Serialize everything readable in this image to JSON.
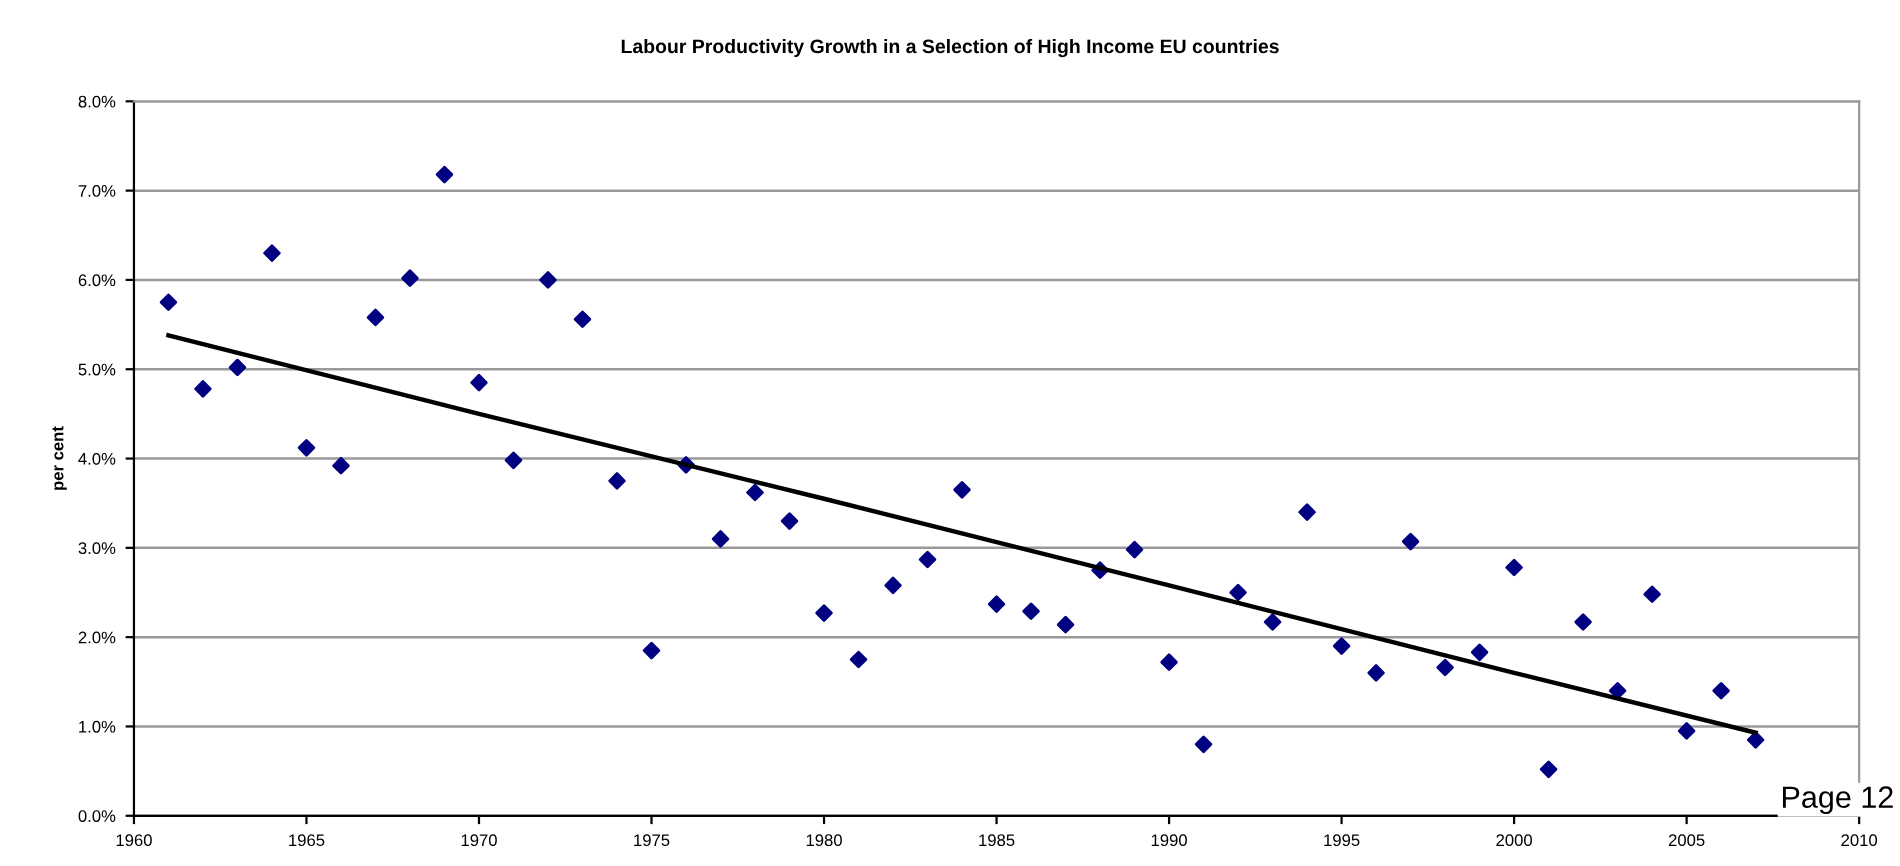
{
  "chart_data": {
    "type": "scatter",
    "title": "Labour Productivity Growth in a Selection of High Income EU countries",
    "ylabel": "per cent",
    "xlim": [
      1960,
      2010
    ],
    "xticks": [
      1960,
      1965,
      1970,
      1975,
      1980,
      1985,
      1990,
      1995,
      2000,
      2005,
      2010
    ],
    "ylim": [
      0,
      8
    ],
    "yticks": [
      {
        "value": 0,
        "label": "0.0%"
      },
      {
        "value": 1,
        "label": "1.0%"
      },
      {
        "value": 2,
        "label": "2.0%"
      },
      {
        "value": 3,
        "label": "3.0%"
      },
      {
        "value": 4,
        "label": "4.0%"
      },
      {
        "value": 5,
        "label": "5.0%"
      },
      {
        "value": 6,
        "label": "6.0%"
      },
      {
        "value": 7,
        "label": "7.0%"
      },
      {
        "value": 8,
        "label": "8.0%"
      }
    ],
    "grid": "y",
    "legend": false,
    "annotations": [
      "Page 12"
    ],
    "series": [
      {
        "marker": "diamond",
        "color": "#000080",
        "x": [
          1961,
          1962,
          1963,
          1964,
          1965,
          1966,
          1967,
          1968,
          1969,
          1970,
          1971,
          1972,
          1973,
          1974,
          1975,
          1976,
          1977,
          1978,
          1979,
          1980,
          1981,
          1982,
          1983,
          1984,
          1985,
          1986,
          1987,
          1988,
          1989,
          1990,
          1991,
          1992,
          1993,
          1994,
          1995,
          1996,
          1997,
          1998,
          1999,
          2000,
          2001,
          2002,
          2003,
          2004,
          2005,
          2006,
          2007
        ],
        "values": [
          5.75,
          4.78,
          5.02,
          6.3,
          4.12,
          3.92,
          5.58,
          6.02,
          7.18,
          4.85,
          3.98,
          6.0,
          5.56,
          3.75,
          1.85,
          3.93,
          3.1,
          3.62,
          3.3,
          2.27,
          1.75,
          2.58,
          2.87,
          3.65,
          2.37,
          2.29,
          2.14,
          2.75,
          2.98,
          1.72,
          0.8,
          2.5,
          2.17,
          3.4,
          1.9,
          1.6,
          3.07,
          1.66,
          1.83,
          2.78,
          0.52,
          2.17,
          1.4,
          2.48,
          0.95,
          1.4,
          0.85
        ]
      },
      {
        "type": "line",
        "marker": "none",
        "line_style": "solid",
        "color": "#000000",
        "x": [
          1961,
          1970,
          1980,
          1990,
          2000,
          2007
        ],
        "values": [
          5.38,
          4.5,
          3.55,
          2.58,
          1.6,
          0.93
        ]
      }
    ]
  }
}
